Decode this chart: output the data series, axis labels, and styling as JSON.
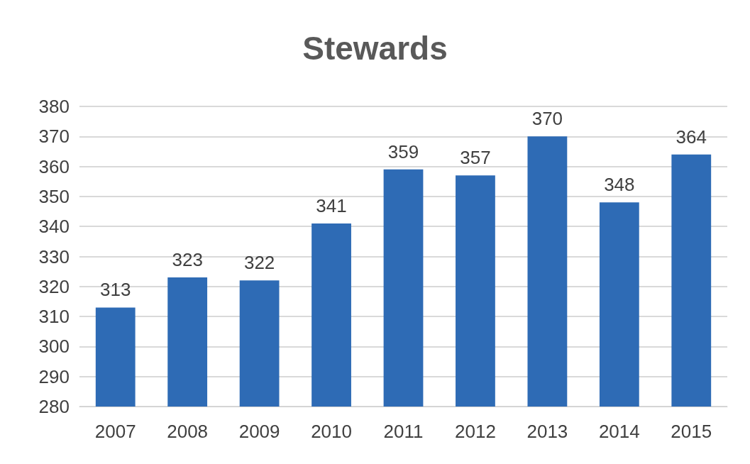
{
  "chart_data": {
    "type": "bar",
    "title": "Stewards",
    "categories": [
      "2007",
      "2008",
      "2009",
      "2010",
      "2011",
      "2012",
      "2013",
      "2014",
      "2015"
    ],
    "values": [
      313,
      323,
      322,
      341,
      359,
      357,
      370,
      348,
      364
    ],
    "color": "#2e6bb5",
    "ylim": [
      280,
      380
    ],
    "yticks": [
      280,
      290,
      300,
      310,
      320,
      330,
      340,
      350,
      360,
      370,
      380
    ],
    "grid": "y",
    "data_labels": true
  }
}
